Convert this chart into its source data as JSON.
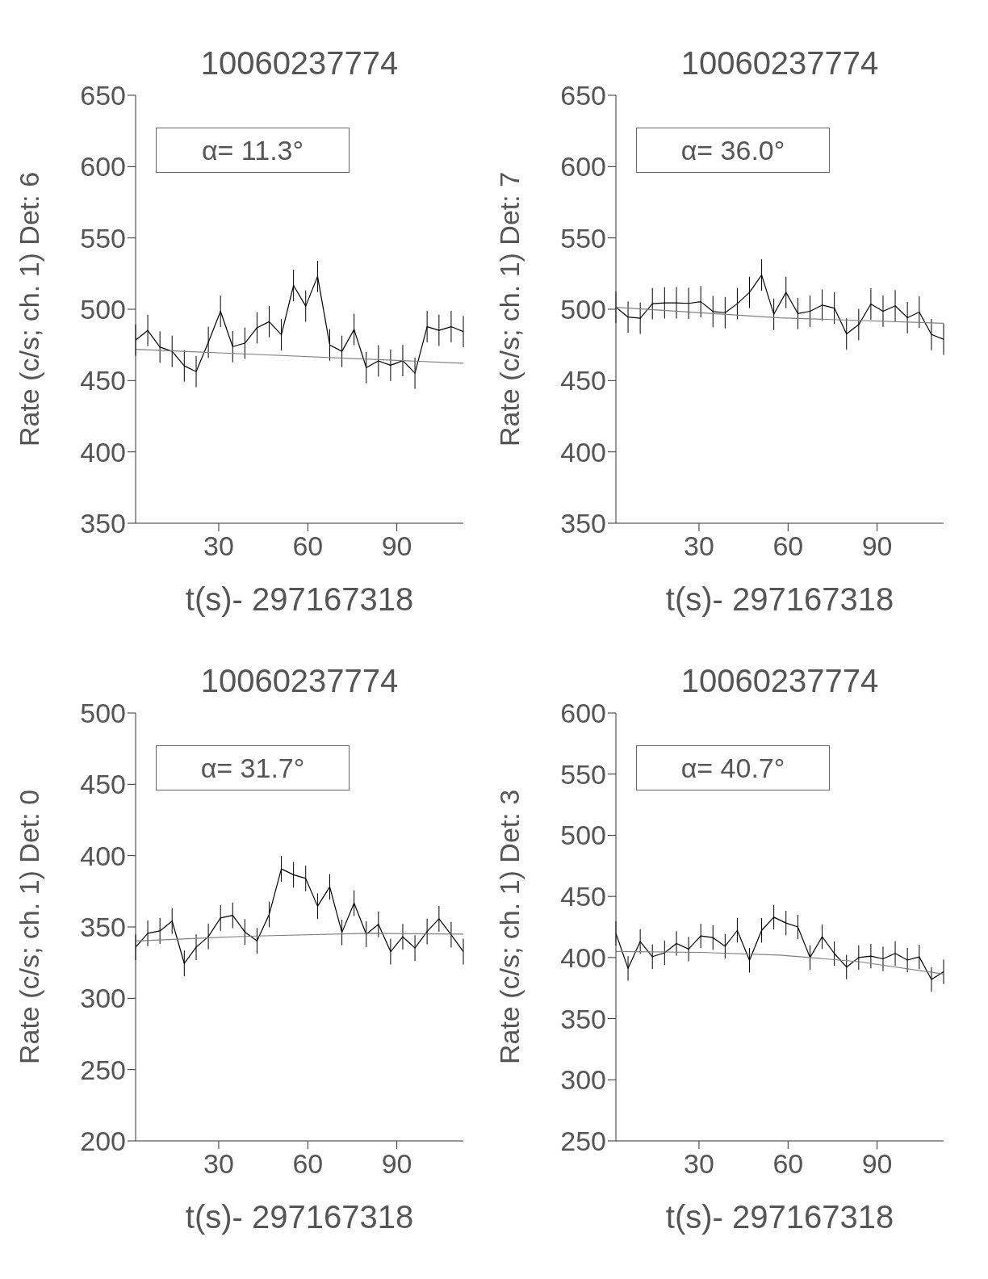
{
  "chart_data": [
    {
      "type": "line",
      "title": "10060237774",
      "xlabel": "t(s)- 297167318",
      "ylabel": "Rate (c/s; ch. 1) Det: 6",
      "annotations": [
        "α= 11.3°"
      ],
      "xlim": [
        2,
        112.4
      ],
      "xticks": [
        30,
        60,
        90
      ],
      "ylim": [
        350,
        650
      ],
      "yticks": [
        350,
        400,
        450,
        500,
        550,
        600,
        650
      ],
      "grid": false,
      "legend": false,
      "marker": "none",
      "line_style": "solid",
      "series": [
        {
          "color": "#000000",
          "x": [
            2.0,
            6.1,
            10.2,
            14.3,
            18.4,
            22.4,
            26.5,
            30.6,
            34.7,
            38.8,
            42.9,
            47.0,
            51.1,
            55.2,
            59.3,
            63.3,
            67.4,
            71.5,
            75.6,
            79.7,
            83.8,
            87.9,
            92.0,
            96.1,
            100.2,
            104.2,
            108.3,
            112.4
          ],
          "values": [
            478.4,
            485.1,
            473.5,
            470.5,
            460.3,
            456.3,
            476.8,
            498.6,
            473.8,
            476.2,
            487.0,
            491.3,
            482.1,
            516.7,
            502.2,
            523.0,
            475.0,
            470.5,
            485.8,
            459.1,
            463.8,
            460.7,
            464.0,
            455.2,
            487.8,
            485.2,
            487.8,
            484.3
          ],
          "errors": [
            11,
            11,
            11,
            11,
            11,
            11,
            11,
            11,
            11,
            11,
            11,
            11,
            11,
            11,
            11,
            11,
            11,
            11,
            11,
            11,
            11,
            11,
            11,
            11,
            11,
            11,
            11,
            11
          ]
        },
        {
          "color": "#808080",
          "x": [
            2,
            112.4
          ],
          "values": [
            471.9,
            462.2
          ]
        }
      ]
    },
    {
      "type": "line",
      "title": "10060237774",
      "xlabel": "t(s)- 297167318",
      "ylabel": "Rate (c/s; ch. 1) Det: 7",
      "annotations": [
        "α= 36.0°"
      ],
      "xlim": [
        2,
        112.4
      ],
      "xticks": [
        30,
        60,
        90
      ],
      "ylim": [
        350,
        650
      ],
      "yticks": [
        350,
        400,
        450,
        500,
        550,
        600,
        650
      ],
      "grid": false,
      "legend": false,
      "marker": "none",
      "line_style": "solid",
      "series": [
        {
          "color": "#000000",
          "x": [
            2.0,
            6.1,
            10.2,
            14.3,
            18.4,
            22.4,
            26.5,
            30.6,
            34.7,
            38.8,
            42.9,
            47.0,
            51.1,
            55.2,
            59.3,
            63.3,
            67.4,
            71.5,
            75.6,
            79.7,
            83.8,
            87.9,
            92.0,
            96.1,
            100.2,
            104.2,
            108.3,
            112.4
          ],
          "values": [
            501.4,
            494.5,
            493.7,
            503.9,
            504.5,
            504.5,
            504.1,
            505.3,
            498.4,
            497.6,
            503.9,
            511.8,
            524.0,
            496.5,
            511.8,
            497.0,
            498.6,
            502.9,
            500.8,
            482.7,
            489.2,
            503.7,
            498.6,
            502.4,
            494.1,
            498.0,
            482.3,
            479.0
          ],
          "errors": [
            11,
            11,
            11,
            11,
            11,
            11,
            11,
            11,
            11,
            11,
            11,
            11,
            11,
            11,
            11,
            11,
            11,
            11,
            11,
            11,
            11,
            11,
            11,
            11,
            11,
            11,
            11,
            11
          ]
        },
        {
          "color": "#808080",
          "x": [
            2,
            57.2,
            112.4
          ],
          "values": [
            501.4,
            494.0,
            490.2
          ]
        }
      ]
    },
    {
      "type": "line",
      "title": "10060237774",
      "xlabel": "t(s)- 297167318",
      "ylabel": "Rate (c/s; ch. 1) Det: 0",
      "annotations": [
        "α= 31.7°"
      ],
      "xlim": [
        2,
        112.4
      ],
      "xticks": [
        30,
        60,
        90
      ],
      "ylim": [
        200,
        500
      ],
      "yticks": [
        200,
        250,
        300,
        350,
        400,
        450,
        500
      ],
      "grid": false,
      "legend": false,
      "marker": "none",
      "line_style": "solid",
      "series": [
        {
          "color": "#000000",
          "x": [
            2.0,
            6.1,
            10.2,
            14.3,
            18.4,
            22.4,
            26.5,
            30.6,
            34.7,
            38.8,
            42.9,
            47.0,
            51.1,
            55.2,
            59.3,
            63.3,
            67.4,
            71.5,
            75.6,
            79.7,
            83.8,
            87.9,
            92.0,
            96.1,
            100.2,
            104.2,
            108.3,
            112.4
          ],
          "values": [
            335.8,
            345.5,
            347.2,
            354.1,
            324.4,
            335.8,
            343.3,
            356.3,
            358.1,
            346.5,
            340.2,
            358.8,
            390.7,
            386.6,
            384.0,
            364.5,
            378.1,
            346.1,
            366.7,
            344.9,
            351.8,
            332.7,
            343.1,
            335.2,
            346.8,
            355.7,
            344.5,
            332.7
          ],
          "errors": [
            9,
            9,
            9,
            9,
            9,
            9,
            9,
            9,
            9,
            9,
            9,
            9,
            9,
            9,
            9,
            9,
            9,
            9,
            9,
            9,
            9,
            9,
            9,
            9,
            9,
            9,
            9,
            9
          ]
        },
        {
          "color": "#808080",
          "x": [
            2,
            40,
            80,
            112.4
          ],
          "values": [
            340.2,
            343.5,
            345.5,
            345.0
          ]
        }
      ]
    },
    {
      "type": "line",
      "title": "10060237774",
      "xlabel": "t(s)- 297167318",
      "ylabel": "Rate (c/s; ch. 1) Det: 3",
      "annotations": [
        "α= 40.7°"
      ],
      "xlim": [
        2,
        112.4
      ],
      "xticks": [
        30,
        60,
        90
      ],
      "ylim": [
        250,
        600
      ],
      "yticks": [
        250,
        300,
        350,
        400,
        450,
        500,
        550,
        600
      ],
      "grid": false,
      "legend": false,
      "marker": "none",
      "line_style": "solid",
      "series": [
        {
          "color": "#000000",
          "x": [
            2.0,
            6.1,
            10.2,
            14.3,
            18.4,
            22.4,
            26.5,
            30.6,
            34.7,
            38.8,
            42.9,
            47.0,
            51.1,
            55.2,
            59.3,
            63.3,
            67.4,
            71.5,
            75.6,
            79.7,
            83.8,
            87.9,
            92.0,
            96.1,
            100.2,
            104.2,
            108.3,
            112.4
          ],
          "values": [
            419.7,
            391.1,
            413.1,
            400.7,
            403.9,
            411.5,
            406.9,
            417.7,
            416.3,
            409.2,
            422.2,
            397.7,
            422.2,
            433.0,
            428.2,
            425.0,
            400.0,
            417.0,
            403.2,
            392.2,
            400.0,
            401.1,
            398.9,
            403.4,
            397.9,
            400.5,
            382.1,
            388.3
          ],
          "errors": [
            10,
            10,
            10,
            10,
            10,
            10,
            10,
            10,
            10,
            10,
            10,
            10,
            10,
            10,
            10,
            10,
            10,
            10,
            10,
            10,
            10,
            10,
            10,
            10,
            10,
            10,
            10,
            10
          ]
        },
        {
          "color": "#808080",
          "x": [
            2,
            30.6,
            57.2,
            83.8,
            112.4
          ],
          "values": [
            405.0,
            404.2,
            402.0,
            396.6,
            386.5
          ]
        }
      ]
    }
  ]
}
